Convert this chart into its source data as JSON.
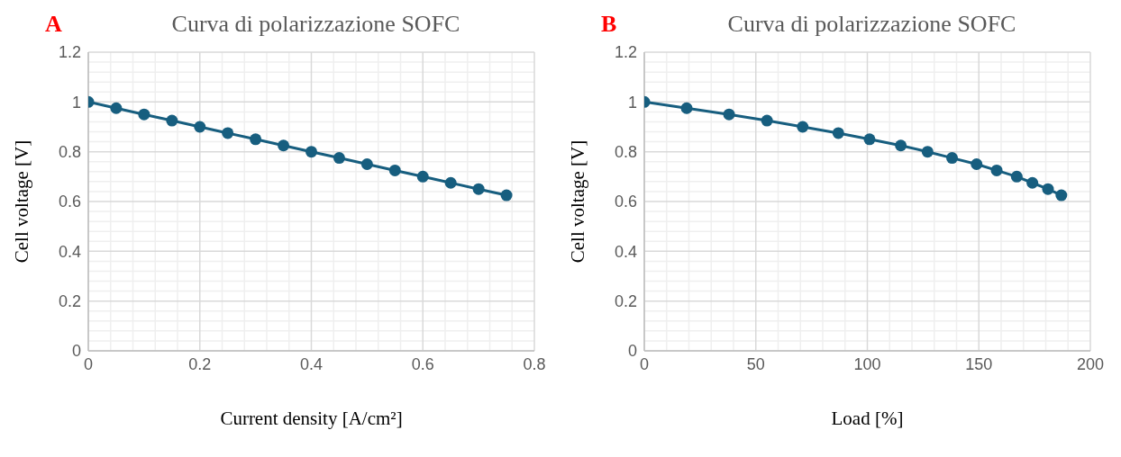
{
  "chart_data": [
    {
      "type": "line",
      "title": "Curva di polarizzazione SOFC",
      "annotations": [
        "A"
      ],
      "xlabel": "Current density [A/cm²]",
      "ylabel": "Cell voltage [V]",
      "x": [
        0,
        0.05,
        0.1,
        0.15,
        0.2,
        0.25,
        0.3,
        0.35,
        0.4,
        0.45,
        0.5,
        0.55,
        0.6,
        0.65,
        0.7,
        0.75
      ],
      "series": [
        {
          "color": "#175e7f",
          "values": [
            1.0,
            0.975,
            0.95,
            0.925,
            0.9,
            0.875,
            0.85,
            0.825,
            0.8,
            0.775,
            0.75,
            0.725,
            0.7,
            0.675,
            0.65,
            0.625
          ]
        }
      ],
      "xlim": [
        0,
        0.8
      ],
      "xticks": [
        0,
        {
          "value": 0.04,
          "label": null
        },
        {
          "value": 0.08,
          "label": null
        },
        {
          "value": 0.12,
          "label": null
        },
        {
          "value": 0.16,
          "label": null
        },
        0.2,
        {
          "value": 0.24,
          "label": null
        },
        {
          "value": 0.28,
          "label": null
        },
        {
          "value": 0.32,
          "label": null
        },
        {
          "value": 0.36,
          "label": null
        },
        0.4,
        {
          "value": 0.44,
          "label": null
        },
        {
          "value": 0.48,
          "label": null
        },
        {
          "value": 0.52,
          "label": null
        },
        {
          "value": 0.56,
          "label": null
        },
        0.6,
        {
          "value": 0.64,
          "label": null
        },
        {
          "value": 0.68,
          "label": null
        },
        {
          "value": 0.72,
          "label": null
        },
        {
          "value": 0.76,
          "label": null
        },
        0.8
      ],
      "ylim": [
        0,
        1.2
      ],
      "yticks": [
        0,
        {
          "value": 0.04,
          "label": null
        },
        {
          "value": 0.08,
          "label": null
        },
        {
          "value": 0.12,
          "label": null
        },
        {
          "value": 0.16,
          "label": null
        },
        0.2,
        {
          "value": 0.24,
          "label": null
        },
        {
          "value": 0.28,
          "label": null
        },
        {
          "value": 0.32,
          "label": null
        },
        {
          "value": 0.36,
          "label": null
        },
        0.4,
        {
          "value": 0.44,
          "label": null
        },
        {
          "value": 0.48,
          "label": null
        },
        {
          "value": 0.52,
          "label": null
        },
        {
          "value": 0.56,
          "label": null
        },
        0.6,
        {
          "value": 0.64,
          "label": null
        },
        {
          "value": 0.68,
          "label": null
        },
        {
          "value": 0.72,
          "label": null
        },
        {
          "value": 0.76,
          "label": null
        },
        0.8,
        {
          "value": 0.84,
          "label": null
        },
        {
          "value": 0.88,
          "label": null
        },
        {
          "value": 0.92,
          "label": null
        },
        {
          "value": 0.96,
          "label": null
        },
        1,
        {
          "value": 1.04,
          "label": null
        },
        {
          "value": 1.08,
          "label": null
        },
        {
          "value": 1.12,
          "label": null
        },
        {
          "value": 1.16,
          "label": null
        },
        1.2
      ],
      "grid": true,
      "marker": "circle",
      "line_style": "solid",
      "legend": false
    },
    {
      "type": "line",
      "title": "Curva di polarizzazione SOFC",
      "annotations": [
        "B"
      ],
      "xlabel": "Load [%]",
      "ylabel": "Cell voltage [V]",
      "x": [
        0,
        19,
        38,
        55,
        71,
        87,
        101,
        115,
        127,
        138,
        149,
        158,
        167,
        174,
        181,
        187
      ],
      "series": [
        {
          "color": "#175e7f",
          "values": [
            1.0,
            0.975,
            0.95,
            0.925,
            0.9,
            0.875,
            0.85,
            0.825,
            0.8,
            0.775,
            0.75,
            0.725,
            0.7,
            0.675,
            0.65,
            0.625
          ]
        }
      ],
      "xlim": [
        0,
        200
      ],
      "xticks": [
        0,
        {
          "value": 10,
          "label": null
        },
        {
          "value": 20,
          "label": null
        },
        {
          "value": 30,
          "label": null
        },
        {
          "value": 40,
          "label": null
        },
        50,
        {
          "value": 60,
          "label": null
        },
        {
          "value": 70,
          "label": null
        },
        {
          "value": 80,
          "label": null
        },
        {
          "value": 90,
          "label": null
        },
        100,
        {
          "value": 110,
          "label": null
        },
        {
          "value": 120,
          "label": null
        },
        {
          "value": 130,
          "label": null
        },
        {
          "value": 140,
          "label": null
        },
        150,
        {
          "value": 160,
          "label": null
        },
        {
          "value": 170,
          "label": null
        },
        {
          "value": 180,
          "label": null
        },
        {
          "value": 190,
          "label": null
        },
        200
      ],
      "ylim": [
        0,
        1.2
      ],
      "yticks": [
        0,
        {
          "value": 0.04,
          "label": null
        },
        {
          "value": 0.08,
          "label": null
        },
        {
          "value": 0.12,
          "label": null
        },
        {
          "value": 0.16,
          "label": null
        },
        0.2,
        {
          "value": 0.24,
          "label": null
        },
        {
          "value": 0.28,
          "label": null
        },
        {
          "value": 0.32,
          "label": null
        },
        {
          "value": 0.36,
          "label": null
        },
        0.4,
        {
          "value": 0.44,
          "label": null
        },
        {
          "value": 0.48,
          "label": null
        },
        {
          "value": 0.52,
          "label": null
        },
        {
          "value": 0.56,
          "label": null
        },
        0.6,
        {
          "value": 0.64,
          "label": null
        },
        {
          "value": 0.68,
          "label": null
        },
        {
          "value": 0.72,
          "label": null
        },
        {
          "value": 0.76,
          "label": null
        },
        0.8,
        {
          "value": 0.84,
          "label": null
        },
        {
          "value": 0.88,
          "label": null
        },
        {
          "value": 0.92,
          "label": null
        },
        {
          "value": 0.96,
          "label": null
        },
        1,
        {
          "value": 1.04,
          "label": null
        },
        {
          "value": 1.08,
          "label": null
        },
        {
          "value": 1.12,
          "label": null
        },
        {
          "value": 1.16,
          "label": null
        },
        1.2
      ],
      "grid": true,
      "marker": "circle",
      "line_style": "solid",
      "legend": false
    }
  ]
}
